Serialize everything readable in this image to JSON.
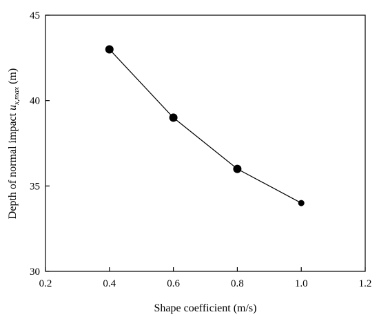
{
  "chart_data": {
    "type": "line",
    "xlabel": "Shape coefficient (m/s)",
    "ylabel": {
      "prefix": "Depth of normal impact ",
      "var": "u",
      "sub": "x,max",
      "unit": "  (m)"
    },
    "xlim": [
      0.2,
      1.2
    ],
    "ylim": [
      30,
      45
    ],
    "xticks": [
      "0.2",
      "0.4",
      "0.6",
      "0.8",
      "1.0",
      "1.2"
    ],
    "yticks": [
      "30",
      "35",
      "40",
      "45"
    ],
    "x": [
      0.4,
      0.6,
      0.8,
      1.0
    ],
    "y": [
      43,
      39,
      36,
      34
    ],
    "marker": "circle",
    "color": "#000000",
    "grid": false,
    "legend": "none"
  }
}
